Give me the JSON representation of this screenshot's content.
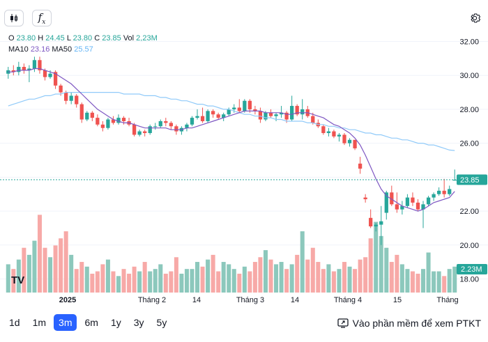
{
  "toolbar": {
    "candle_icon": "candlestick-icon",
    "fx_icon": "function-icon",
    "fx_label": "f",
    "fx_sub": "x",
    "settings_icon": "gear-icon"
  },
  "legend": {
    "o_label": "O",
    "o_value": "23.80",
    "h_label": "H",
    "h_value": "24.45",
    "l_label": "L",
    "l_value": "23.80",
    "c_label": "C",
    "c_value": "23.85",
    "vol_label": "Vol",
    "vol_value": "2,23M",
    "ma10_label": "MA10",
    "ma10_value": "23.16",
    "ma50_label": "MA50",
    "ma50_value": "25.57"
  },
  "colors": {
    "up": "#26a69a",
    "down": "#ef5350",
    "up_vol": "#8cc8bc",
    "down_vol": "#f7a9a7",
    "ma10": "#7e57c2",
    "ma50": "#90caf9",
    "grid": "#f0f3fa",
    "text": "#131722",
    "axis_text": "#787b86"
  },
  "chart_data": {
    "type": "candlestick",
    "title": "",
    "xlabel": "",
    "ylabel": "",
    "ylim": [
      17.2,
      32.8
    ],
    "yticks": [
      "32.00",
      "30.00",
      "28.00",
      "26.00",
      "24.00",
      "22.00",
      "20.00",
      "18.00"
    ],
    "xticks": [
      "2025",
      "Tháng 2",
      "14",
      "Tháng 3",
      "14",
      "Tháng 4",
      "15",
      "Tháng"
    ],
    "last_price_label": "23.85",
    "last_price": 23.85,
    "volume_label": "2.23M",
    "ohlc": [
      [
        30.1,
        30.5,
        29.8,
        30.3
      ],
      [
        30.3,
        30.6,
        30.0,
        30.2
      ],
      [
        30.2,
        30.8,
        30.0,
        30.5
      ],
      [
        30.5,
        30.7,
        30.1,
        30.3
      ],
      [
        30.3,
        30.6,
        29.6,
        30.4
      ],
      [
        30.4,
        31.1,
        30.2,
        30.9
      ],
      [
        30.9,
        31.1,
        30.1,
        30.3
      ],
      [
        30.3,
        30.4,
        29.7,
        29.9
      ],
      [
        29.9,
        30.3,
        29.8,
        30.1
      ],
      [
        30.2,
        30.3,
        29.2,
        29.4
      ],
      [
        29.4,
        29.5,
        28.8,
        29.0
      ],
      [
        29.0,
        29.1,
        28.3,
        28.5
      ],
      [
        28.5,
        29.0,
        28.3,
        28.8
      ],
      [
        28.8,
        28.9,
        28.1,
        28.3
      ],
      [
        28.3,
        28.4,
        27.2,
        27.4
      ],
      [
        27.4,
        27.9,
        27.3,
        27.8
      ],
      [
        27.8,
        27.9,
        27.3,
        27.5
      ],
      [
        27.5,
        27.7,
        27.0,
        27.1
      ],
      [
        27.1,
        27.3,
        26.7,
        26.9
      ],
      [
        26.9,
        27.5,
        26.8,
        27.4
      ],
      [
        27.4,
        27.6,
        27.1,
        27.2
      ],
      [
        27.2,
        27.7,
        27.1,
        27.5
      ],
      [
        27.5,
        27.6,
        27.1,
        27.3
      ],
      [
        27.3,
        27.5,
        27.0,
        27.1
      ],
      [
        27.1,
        27.2,
        26.4,
        26.5
      ],
      [
        26.5,
        26.8,
        26.4,
        26.7
      ],
      [
        26.7,
        26.8,
        26.4,
        26.6
      ],
      [
        26.6,
        27.1,
        26.5,
        27.0
      ],
      [
        27.0,
        27.2,
        26.8,
        27.0
      ],
      [
        27.0,
        27.4,
        26.9,
        27.3
      ],
      [
        27.3,
        27.5,
        27.0,
        27.2
      ],
      [
        27.2,
        27.3,
        26.8,
        27.0
      ],
      [
        27.0,
        27.1,
        26.5,
        26.7
      ],
      [
        26.7,
        27.0,
        26.5,
        26.9
      ],
      [
        26.9,
        27.2,
        26.7,
        27.1
      ],
      [
        27.1,
        27.6,
        27.0,
        27.5
      ],
      [
        27.5,
        28.0,
        27.4,
        27.6
      ],
      [
        27.6,
        28.1,
        27.2,
        27.3
      ],
      [
        27.3,
        28.0,
        27.2,
        27.9
      ],
      [
        27.9,
        28.0,
        27.5,
        27.7
      ],
      [
        27.7,
        27.8,
        27.4,
        27.5
      ],
      [
        27.5,
        27.8,
        27.3,
        27.7
      ],
      [
        27.7,
        28.1,
        27.6,
        28.0
      ],
      [
        28.0,
        28.3,
        27.8,
        28.1
      ],
      [
        28.1,
        28.6,
        27.8,
        27.9
      ],
      [
        27.9,
        28.6,
        27.8,
        28.5
      ],
      [
        28.5,
        28.6,
        27.8,
        28.0
      ],
      [
        28.0,
        28.2,
        27.7,
        27.9
      ],
      [
        27.9,
        28.1,
        27.2,
        27.4
      ],
      [
        27.4,
        27.9,
        27.3,
        27.8
      ],
      [
        27.8,
        28.0,
        27.5,
        27.6
      ],
      [
        27.6,
        27.8,
        27.3,
        27.7
      ],
      [
        27.7,
        28.2,
        27.5,
        27.8
      ],
      [
        27.8,
        27.9,
        27.2,
        27.4
      ],
      [
        27.4,
        28.8,
        27.3,
        28.2
      ],
      [
        28.2,
        28.3,
        27.6,
        27.7
      ],
      [
        27.7,
        28.6,
        27.4,
        28.0
      ],
      [
        28.0,
        28.2,
        27.5,
        27.6
      ],
      [
        27.6,
        27.8,
        27.1,
        27.2
      ],
      [
        27.2,
        27.4,
        26.9,
        27.0
      ],
      [
        27.0,
        27.1,
        26.5,
        26.6
      ],
      [
        26.6,
        26.9,
        26.4,
        26.7
      ],
      [
        26.7,
        26.8,
        26.3,
        26.4
      ],
      [
        26.4,
        26.6,
        26.1,
        26.5
      ],
      [
        26.5,
        26.6,
        25.9,
        26.0
      ],
      [
        26.0,
        26.3,
        25.8,
        26.2
      ],
      [
        26.2,
        26.2,
        25.6,
        25.7
      ],
      [
        24.8,
        25.2,
        24.2,
        24.5
      ],
      [
        22.8,
        23.0,
        22.5,
        22.7
      ],
      [
        21.6,
        22.1,
        21.0,
        21.1
      ],
      [
        21.1,
        21.3,
        20.8,
        21.2
      ],
      [
        21.2,
        22.3,
        20.0,
        21.4
      ],
      [
        21.9,
        23.2,
        21.5,
        23.1
      ],
      [
        23.1,
        23.5,
        22.3,
        22.4
      ],
      [
        22.4,
        23.1,
        21.9,
        22.1
      ],
      [
        22.1,
        22.6,
        21.8,
        22.3
      ],
      [
        22.3,
        23.0,
        22.2,
        22.8
      ],
      [
        22.8,
        23.1,
        22.3,
        22.5
      ],
      [
        22.5,
        22.7,
        22.0,
        22.1
      ],
      [
        22.1,
        22.6,
        21.0,
        22.4
      ],
      [
        22.4,
        22.9,
        22.3,
        22.8
      ],
      [
        22.8,
        23.1,
        22.6,
        23.0
      ],
      [
        23.0,
        23.4,
        22.9,
        23.2
      ],
      [
        23.2,
        23.9,
        22.8,
        23.0
      ],
      [
        23.0,
        23.5,
        22.9,
        23.3
      ],
      [
        23.8,
        24.45,
        23.8,
        23.85
      ]
    ],
    "volume": [
      1.2,
      1.0,
      1.4,
      1.9,
      1.6,
      2.2,
      3.3,
      1.9,
      1.5,
      2.0,
      2.3,
      2.6,
      1.6,
      1.0,
      1.3,
      1.1,
      0.8,
      0.9,
      1.2,
      1.4,
      0.9,
      0.7,
      1.0,
      0.8,
      1.1,
      0.9,
      1.3,
      0.9,
      1.0,
      1.2,
      0.8,
      0.9,
      1.5,
      0.8,
      1.0,
      1.0,
      1.3,
      1.1,
      1.4,
      1.6,
      0.9,
      1.3,
      1.2,
      1.0,
      0.8,
      1.1,
      0.9,
      1.3,
      1.5,
      1.8,
      1.4,
      1.2,
      1.3,
      1.0,
      1.2,
      1.6,
      2.6,
      1.4,
      1.9,
      1.3,
      1.0,
      1.2,
      0.9,
      1.0,
      1.3,
      1.1,
      1.0,
      1.4,
      1.5,
      2.3,
      3.0,
      2.4,
      1.9,
      1.3,
      1.6,
      1.2,
      1.0,
      0.9,
      0.8,
      1.0,
      1.7,
      0.9,
      0.9,
      0.7,
      1.0,
      1.1
    ],
    "ma10": [
      30.2,
      30.2,
      30.3,
      30.3,
      30.3,
      30.4,
      30.4,
      30.3,
      30.2,
      30.1,
      29.9,
      29.7,
      29.5,
      29.2,
      28.9,
      28.6,
      28.3,
      28.0,
      27.8,
      27.6,
      27.4,
      27.3,
      27.2,
      27.2,
      27.1,
      27.0,
      26.9,
      26.9,
      26.9,
      26.9,
      26.9,
      26.8,
      26.8,
      26.8,
      26.9,
      26.9,
      27.0,
      27.1,
      27.2,
      27.3,
      27.4,
      27.5,
      27.6,
      27.7,
      27.8,
      27.9,
      27.9,
      27.9,
      27.9,
      27.8,
      27.8,
      27.8,
      27.8,
      27.7,
      27.7,
      27.8,
      27.8,
      27.8,
      27.7,
      27.6,
      27.5,
      27.3,
      27.1,
      27.0,
      26.8,
      26.6,
      26.3,
      25.9,
      25.3,
      24.6,
      23.9,
      23.3,
      22.9,
      22.7,
      22.5,
      22.3,
      22.2,
      22.1,
      22.0,
      22.1,
      22.3,
      22.5,
      22.6,
      22.7,
      22.8,
      23.16
    ],
    "ma50": [
      28.2,
      28.3,
      28.4,
      28.5,
      28.6,
      28.6,
      28.7,
      28.8,
      28.8,
      28.9,
      28.9,
      29.0,
      29.0,
      29.0,
      29.0,
      29.0,
      29.0,
      29.0,
      29.0,
      29.0,
      29.0,
      29.0,
      28.9,
      28.9,
      28.9,
      28.9,
      28.8,
      28.8,
      28.8,
      28.7,
      28.7,
      28.6,
      28.6,
      28.5,
      28.5,
      28.4,
      28.3,
      28.3,
      28.2,
      28.2,
      28.1,
      28.0,
      28.0,
      27.9,
      27.8,
      27.7,
      27.7,
      27.6,
      27.6,
      27.5,
      27.5,
      27.4,
      27.4,
      27.3,
      27.3,
      27.3,
      27.3,
      27.2,
      27.2,
      27.1,
      27.1,
      27.0,
      27.0,
      26.9,
      26.9,
      26.8,
      26.8,
      26.7,
      26.6,
      26.6,
      26.5,
      26.5,
      26.4,
      26.3,
      26.3,
      26.2,
      26.2,
      26.1,
      26.0,
      26.0,
      25.9,
      25.9,
      25.8,
      25.7,
      25.6,
      25.57
    ]
  },
  "bottom": {
    "ranges": [
      "1d",
      "1m",
      "3m",
      "6m",
      "1y",
      "3y",
      "5y"
    ],
    "active_index": 2,
    "tv_logo": "TV",
    "external_link": "Vào phần mềm để xem PTKT",
    "external_icon": "external-window-icon"
  }
}
